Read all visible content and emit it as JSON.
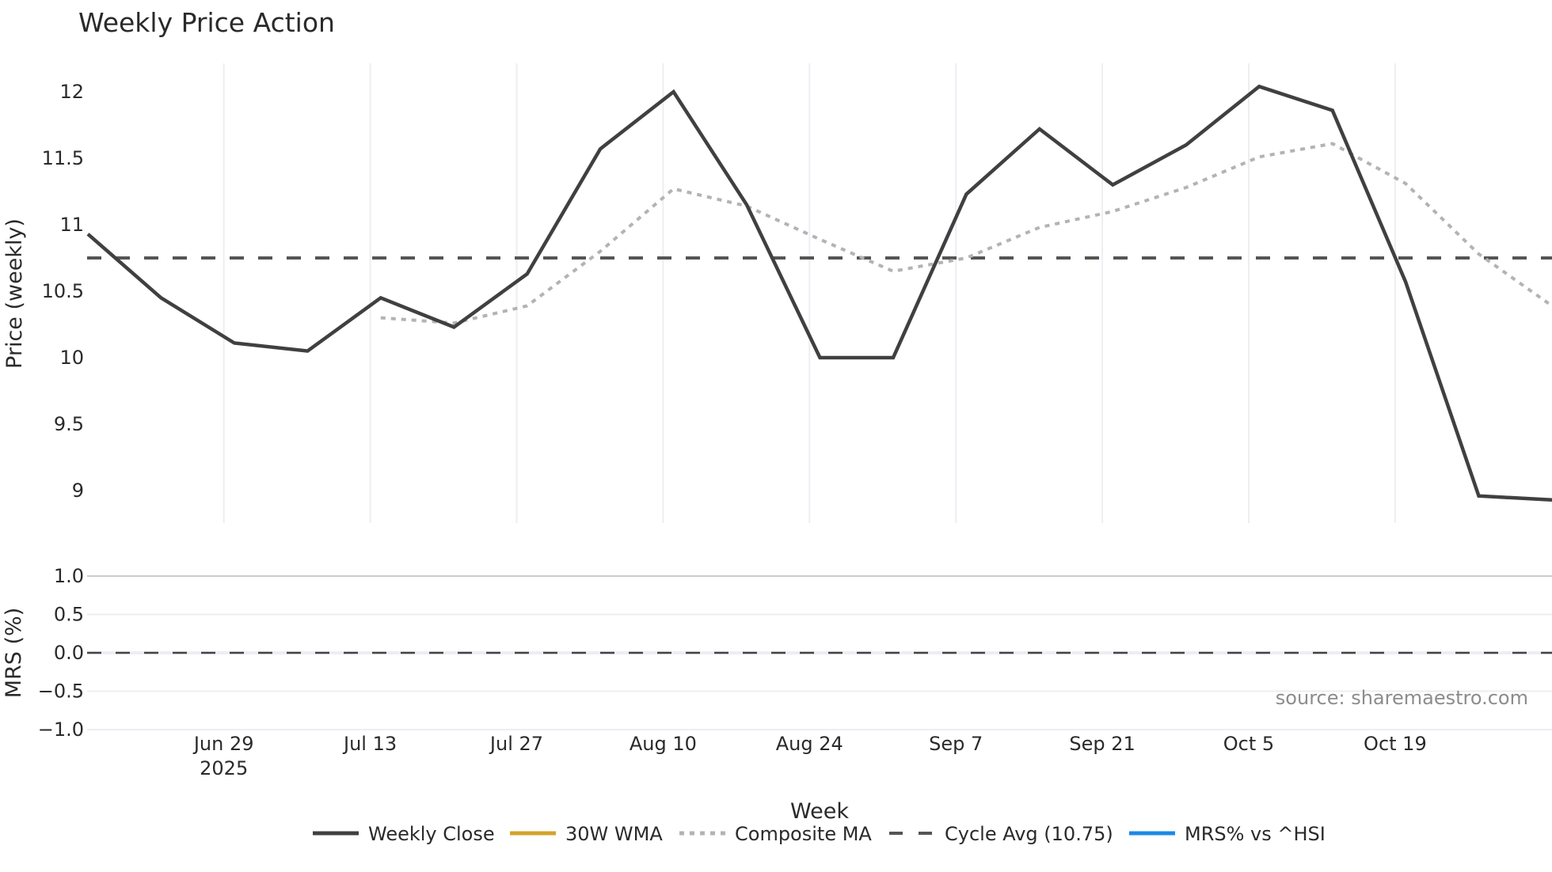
{
  "title": "Weekly Price Action",
  "source_label": "source: sharemaestro.com",
  "colors": {
    "weekly_close": "#404040",
    "wma_30w": "#D4A32A",
    "composite_ma": "#B3B3B3",
    "cycle_avg": "#555555",
    "mrs": "#1E88E5",
    "grid": "#ECEEF3",
    "mrs_top_line": "#CCCCCC"
  },
  "legend": [
    {
      "key": "weekly_close",
      "label": "Weekly Close",
      "style": "solid"
    },
    {
      "key": "wma_30w",
      "label": "30W WMA",
      "style": "solid"
    },
    {
      "key": "composite_ma",
      "label": "Composite MA",
      "style": "dotted"
    },
    {
      "key": "cycle_avg",
      "label": "Cycle Avg (10.75)",
      "style": "dashed"
    },
    {
      "key": "mrs",
      "label": "MRS% vs ^HSI",
      "style": "solid"
    }
  ],
  "chart_data": [
    {
      "type": "line",
      "title": "Weekly Price Action",
      "xlabel": "Week",
      "ylabel": "Price (weekly)",
      "ylim": [
        8.76,
        12.21
      ],
      "yticks": [
        9,
        9.5,
        10,
        10.5,
        11,
        11.5,
        12
      ],
      "ytick_labels": [
        "9",
        "9.5",
        "10",
        "10.5",
        "11",
        "11.5",
        "12"
      ],
      "xtick_labels": [
        "Jun 29\n2025",
        "Jul 13",
        "Jul 27",
        "Aug 10",
        "Aug 24",
        "Sep 7",
        "Sep 21",
        "Oct 5",
        "Oct 19"
      ],
      "xticks": [
        "2025-06-29",
        "2025-07-13",
        "2025-07-27",
        "2025-08-10",
        "2025-08-24",
        "2025-09-07",
        "2025-09-21",
        "2025-10-05",
        "2025-10-19"
      ],
      "grid": {
        "vertical": true,
        "horizontal": false
      },
      "x": [
        "2025-06-16",
        "2025-06-23",
        "2025-06-30",
        "2025-07-07",
        "2025-07-14",
        "2025-07-21",
        "2025-07-28",
        "2025-08-04",
        "2025-08-11",
        "2025-08-18",
        "2025-08-25",
        "2025-09-01",
        "2025-09-08",
        "2025-09-15",
        "2025-09-22",
        "2025-09-29",
        "2025-10-06",
        "2025-10-13",
        "2025-10-20",
        "2025-10-27",
        "2025-11-03"
      ],
      "series": [
        {
          "name": "Weekly Close",
          "key": "weekly_close",
          "values": [
            10.93,
            10.45,
            10.11,
            10.05,
            10.45,
            10.23,
            10.63,
            11.57,
            12.0,
            11.15,
            10.0,
            10.0,
            11.23,
            11.72,
            11.3,
            11.6,
            12.04,
            11.86,
            10.57,
            8.96,
            8.93
          ]
        },
        {
          "name": "30W WMA",
          "key": "wma_30w",
          "values": []
        },
        {
          "name": "Composite MA",
          "key": "composite_ma",
          "values": [
            null,
            null,
            null,
            null,
            10.3,
            10.26,
            10.39,
            10.8,
            11.27,
            11.14,
            10.89,
            10.65,
            10.75,
            10.98,
            11.1,
            11.28,
            11.51,
            11.61,
            11.31,
            10.78,
            10.39
          ]
        },
        {
          "name": "Cycle Avg (10.75)",
          "key": "cycle_avg",
          "constant": 10.75
        }
      ]
    },
    {
      "type": "line",
      "title": "",
      "xlabel": "Week",
      "ylabel": "MRS (%)",
      "ylim": [
        -1.0,
        1.0
      ],
      "yticks": [
        -1.0,
        -0.5,
        0.0,
        0.5,
        1.0
      ],
      "ytick_labels": [
        "−1.0",
        "−0.5",
        "0.0",
        "0.5",
        "1.0"
      ],
      "series": [
        {
          "name": "MRS% vs ^HSI",
          "key": "mrs",
          "values": []
        },
        {
          "name": "Zero line",
          "key": "zero",
          "constant": 0.0
        }
      ],
      "annotations": [
        "source: sharemaestro.com"
      ]
    }
  ]
}
